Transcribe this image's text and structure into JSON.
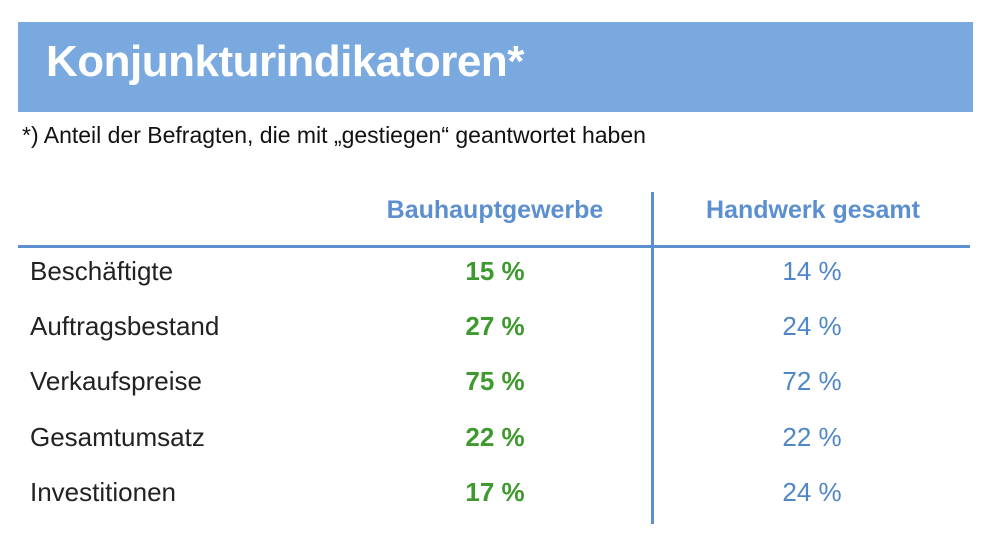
{
  "title": "Konjunkturindikatoren*",
  "footnote": "*) Anteil der Befragten, die mit „gestiegen“ geantwortet haben",
  "table": {
    "columns": [
      "",
      "Bauhauptgewerbe",
      "Handwerk gesamt"
    ],
    "rows": [
      {
        "label": "Beschäftigte",
        "bauhauptgewerbe": "15 %",
        "handwerk": "14 %"
      },
      {
        "label": "Auftragsbestand",
        "bauhauptgewerbe": "27 %",
        "handwerk": "24 %"
      },
      {
        "label": "Verkaufspreise",
        "bauhauptgewerbe": "75 %",
        "handwerk": "72 %"
      },
      {
        "label": "Gesamtumsatz",
        "bauhauptgewerbe": "22 %",
        "handwerk": "22 %"
      },
      {
        "label": "Investitionen",
        "bauhauptgewerbe": "17 %",
        "handwerk": "24 %"
      }
    ]
  },
  "colors": {
    "title_bar": "#7aa9e0",
    "header_text": "#5b8fd0",
    "bauhauptgewerbe_values": "#3e9a2e",
    "handwerk_values": "#4f86c8"
  }
}
